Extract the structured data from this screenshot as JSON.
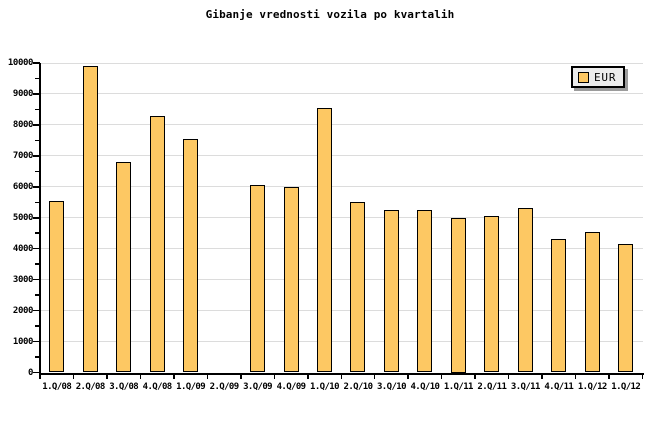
{
  "title": "Gibanje vrednosti vozila po kvartalih",
  "legend": {
    "label": "EUR"
  },
  "colors": {
    "background": "#ffffff",
    "bar_fill": "#fdc863",
    "bar_border": "#000000",
    "grid": "#dcdcdc",
    "axis": "#000000",
    "legend_bg": "#ececec",
    "legend_border": "#000000",
    "legend_shadow": "#9c9c9c"
  },
  "chart_data": {
    "type": "bar",
    "title": "Gibanje vrednosti vozila po kvartalih",
    "categories": [
      "1.Q/08",
      "2.Q/08",
      "3.Q/08",
      "4.Q/08",
      "1.Q/09",
      "2.Q/09",
      "3.Q/09",
      "4.Q/09",
      "1.Q/10",
      "2.Q/10",
      "3.Q/10",
      "4.Q/10",
      "1.Q/11",
      "2.Q/11",
      "3.Q/11",
      "4.Q/11",
      "1.Q/12",
      "1.Q/12"
    ],
    "series": [
      {
        "name": "EUR",
        "values": [
          5550,
          9900,
          6800,
          8300,
          7550,
          null,
          6050,
          6000,
          8550,
          5500,
          5250,
          5250,
          5000,
          5050,
          5300,
          4300,
          4550,
          4150
        ]
      }
    ],
    "xlabel": "",
    "ylabel": "",
    "ylim": [
      0,
      10000
    ],
    "ytick_step": 1000,
    "ytick_minor_step": 500,
    "grid": true,
    "legend_position": "top-right"
  }
}
